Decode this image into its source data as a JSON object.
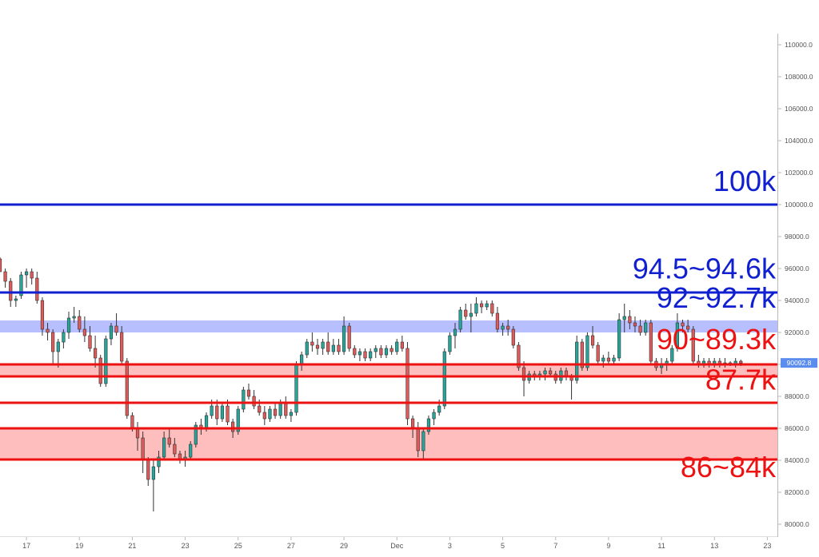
{
  "chart_data": {
    "type": "candlestick",
    "title": "",
    "ylim": [
      79600,
      111600
    ],
    "y_ticks": [
      "80000.0",
      "82000.0",
      "84000.0",
      "86000.0",
      "88000.0",
      "90000.0",
      "92000.0",
      "94000.0",
      "96000.0",
      "98000.0",
      "100000.0",
      "102000.0",
      "104000.0",
      "106000.0",
      "108000.0",
      "110000.0"
    ],
    "y_tick_values": [
      80000,
      82000,
      84000,
      86000,
      88000,
      90000,
      92000,
      94000,
      96000,
      98000,
      100000,
      102000,
      104000,
      106000,
      108000,
      110000
    ],
    "x_ticks": [
      "17",
      "19",
      "21",
      "23",
      "25",
      "27",
      "29",
      "Dec",
      "3",
      "5",
      "7",
      "9",
      "11",
      "13",
      "23"
    ],
    "x_tick_days": [
      17,
      19,
      21,
      23,
      25,
      27,
      29,
      31,
      33,
      35,
      37,
      39,
      41,
      43,
      45
    ],
    "x_day_range": [
      16.0,
      45.2
    ],
    "last_price": {
      "label": "90092.8",
      "value": 90092.8,
      "color": "#5b8def"
    },
    "colors": {
      "up": "#26a69a",
      "down": "#e05a5a",
      "blue_level": "#1020d0",
      "red_level": "#ee1111",
      "blue_zone_fill": "#aab4ff",
      "red_zone_fill": "#ffb3b3"
    },
    "levels": [
      {
        "id": "level-100k",
        "value": 100000,
        "color": "blue"
      },
      {
        "id": "level-94-5k",
        "value": 94500,
        "color": "blue"
      },
      {
        "id": "level-90k",
        "value": 90000,
        "color": "red"
      },
      {
        "id": "level-89-3k",
        "value": 89250,
        "color": "red"
      },
      {
        "id": "level-87-7k",
        "value": 87600,
        "color": "red"
      },
      {
        "id": "level-86k",
        "value": 86000,
        "color": "red"
      },
      {
        "id": "level-84k",
        "value": 84050,
        "color": "red"
      }
    ],
    "zones": [
      {
        "id": "zone-92k",
        "from": 92000,
        "to": 92750,
        "color": "blue"
      },
      {
        "id": "zone-90k",
        "from": 89250,
        "to": 90000,
        "color": "red"
      },
      {
        "id": "zone-84-86k",
        "from": 84050,
        "to": 86000,
        "color": "red"
      }
    ],
    "annotations": [
      {
        "id": "label-100k",
        "text": "100k",
        "y": 100850,
        "color": "blue"
      },
      {
        "id": "label-94-5k",
        "text": "94.5~94.6k",
        "y": 95380,
        "color": "blue"
      },
      {
        "id": "label-92k",
        "text": "92~92.7k",
        "y": 93560,
        "color": "blue"
      },
      {
        "id": "label-90k",
        "text": "90~89.3k",
        "y": 90950,
        "color": "red"
      },
      {
        "id": "label-87-7k",
        "text": "87.7k",
        "y": 88430,
        "color": "red"
      },
      {
        "id": "label-84k",
        "text": "86~84k",
        "y": 82950,
        "color": "red"
      }
    ],
    "candles": [
      [
        16.0,
        96600,
        96700,
        95800,
        95800
      ],
      [
        16.2,
        95800,
        96000,
        94800,
        95200
      ],
      [
        16.4,
        95200,
        95400,
        93600,
        94000
      ],
      [
        16.6,
        94000,
        94300,
        93600,
        94100
      ],
      [
        16.8,
        94300,
        95800,
        94100,
        95600
      ],
      [
        17.0,
        95600,
        96000,
        94800,
        95800
      ],
      [
        17.2,
        95800,
        96000,
        95000,
        95400
      ],
      [
        17.4,
        95400,
        95800,
        93800,
        94000
      ],
      [
        17.6,
        94000,
        94200,
        91800,
        92200
      ],
      [
        17.8,
        92200,
        92600,
        91500,
        92000
      ],
      [
        18.0,
        92000,
        92200,
        90000,
        90800
      ],
      [
        18.2,
        90800,
        91600,
        89800,
        91400
      ],
      [
        18.4,
        91400,
        92200,
        91000,
        92000
      ],
      [
        18.6,
        92000,
        93300,
        91600,
        92900
      ],
      [
        18.8,
        92900,
        93600,
        92600,
        93000
      ],
      [
        19.0,
        93000,
        93400,
        92000,
        92200
      ],
      [
        19.2,
        92200,
        93000,
        91400,
        91800
      ],
      [
        19.4,
        91800,
        92400,
        90800,
        91000
      ],
      [
        19.6,
        91000,
        91800,
        89800,
        90400
      ],
      [
        19.8,
        90400,
        90600,
        88600,
        88800
      ],
      [
        20.0,
        88800,
        91800,
        88600,
        91600
      ],
      [
        20.2,
        91600,
        92600,
        91200,
        92400
      ],
      [
        20.4,
        92400,
        93200,
        91800,
        92000
      ],
      [
        20.6,
        92000,
        92400,
        90000,
        90200
      ],
      [
        20.8,
        90200,
        90400,
        86600,
        86800
      ],
      [
        21.0,
        86800,
        87000,
        85800,
        86000
      ],
      [
        21.2,
        86000,
        86400,
        84600,
        85400
      ],
      [
        21.4,
        85400,
        85800,
        83200,
        84000
      ],
      [
        21.6,
        84000,
        84200,
        82400,
        82800
      ],
      [
        21.8,
        82800,
        84000,
        80800,
        83600
      ],
      [
        22.0,
        83600,
        84600,
        83200,
        84200
      ],
      [
        22.2,
        84200,
        85800,
        84000,
        85400
      ],
      [
        22.4,
        85400,
        86000,
        84800,
        85000
      ],
      [
        22.6,
        85000,
        85400,
        84200,
        84400
      ],
      [
        22.8,
        84400,
        84600,
        83800,
        84000
      ],
      [
        23.0,
        84000,
        84600,
        83600,
        84200
      ],
      [
        23.2,
        84200,
        85200,
        84000,
        85000
      ],
      [
        23.4,
        85000,
        86400,
        84800,
        86200
      ],
      [
        23.6,
        86200,
        86600,
        85600,
        86000
      ],
      [
        23.8,
        86000,
        87000,
        85800,
        86800
      ],
      [
        24.0,
        86800,
        87800,
        86600,
        87400
      ],
      [
        24.2,
        87400,
        87800,
        86200,
        86600
      ],
      [
        24.4,
        86600,
        87600,
        86400,
        87400
      ],
      [
        24.6,
        87400,
        87800,
        86200,
        86400
      ],
      [
        24.8,
        86400,
        86600,
        85400,
        85800
      ],
      [
        25.0,
        85800,
        87400,
        85600,
        87200
      ],
      [
        25.2,
        87200,
        88600,
        87000,
        88400
      ],
      [
        25.4,
        88400,
        88800,
        87800,
        88000
      ],
      [
        25.6,
        88000,
        88400,
        87200,
        87400
      ],
      [
        25.8,
        87400,
        87800,
        86800,
        87000
      ],
      [
        26.0,
        87000,
        87400,
        86200,
        86600
      ],
      [
        26.2,
        86600,
        87400,
        86400,
        87200
      ],
      [
        26.4,
        87200,
        87600,
        86600,
        86800
      ],
      [
        26.6,
        86800,
        87800,
        86600,
        87600
      ],
      [
        26.8,
        87600,
        88000,
        86600,
        86800
      ],
      [
        27.0,
        86800,
        87200,
        86400,
        87000
      ],
      [
        27.2,
        87000,
        90200,
        86800,
        90000
      ],
      [
        27.4,
        90000,
        90800,
        89600,
        90600
      ],
      [
        27.6,
        90600,
        91600,
        90400,
        91400
      ],
      [
        27.8,
        91400,
        92000,
        90800,
        91200
      ],
      [
        28.0,
        91200,
        91600,
        90600,
        91000
      ],
      [
        28.2,
        91000,
        91600,
        90600,
        91400
      ],
      [
        28.4,
        91400,
        92000,
        90600,
        90800
      ],
      [
        28.6,
        90800,
        91600,
        90600,
        91200
      ],
      [
        28.8,
        91200,
        91600,
        90600,
        90800
      ],
      [
        29.0,
        90800,
        93000,
        90600,
        92400
      ],
      [
        29.2,
        92400,
        92600,
        90800,
        91000
      ],
      [
        29.4,
        91000,
        91200,
        90400,
        90600
      ],
      [
        29.6,
        90600,
        91000,
        90200,
        90800
      ],
      [
        29.8,
        90800,
        91000,
        90200,
        90400
      ],
      [
        30.0,
        90400,
        91000,
        90200,
        90800
      ],
      [
        30.2,
        90800,
        91200,
        90400,
        91000
      ],
      [
        30.4,
        91000,
        91200,
        90400,
        90600
      ],
      [
        30.6,
        90600,
        91200,
        90400,
        91000
      ],
      [
        30.8,
        91000,
        91200,
        90600,
        90800
      ],
      [
        31.0,
        90800,
        91600,
        90600,
        91400
      ],
      [
        31.2,
        91400,
        91800,
        90800,
        91000
      ],
      [
        31.4,
        91000,
        91400,
        86200,
        86600
      ],
      [
        31.6,
        86600,
        86800,
        85400,
        86000
      ],
      [
        31.8,
        86000,
        86400,
        84200,
        84600
      ],
      [
        32.0,
        84600,
        86000,
        84000,
        85800
      ],
      [
        32.2,
        85800,
        86800,
        85600,
        86600
      ],
      [
        32.4,
        86600,
        87200,
        86200,
        87000
      ],
      [
        32.6,
        87000,
        87800,
        86800,
        87400
      ],
      [
        32.8,
        87400,
        91000,
        87200,
        90800
      ],
      [
        33.0,
        90800,
        92000,
        90600,
        91800
      ],
      [
        33.2,
        91800,
        92600,
        91000,
        92200
      ],
      [
        33.4,
        92200,
        93600,
        92000,
        93400
      ],
      [
        33.6,
        93400,
        93800,
        92800,
        93000
      ],
      [
        33.8,
        93000,
        93800,
        92000,
        93200
      ],
      [
        34.0,
        93200,
        94200,
        93000,
        93800
      ],
      [
        34.2,
        93800,
        94000,
        93200,
        93600
      ],
      [
        34.4,
        93600,
        94000,
        93400,
        93800
      ],
      [
        34.6,
        93800,
        94000,
        93000,
        93200
      ],
      [
        34.8,
        93200,
        93600,
        92000,
        92200
      ],
      [
        35.0,
        92200,
        92600,
        91800,
        92400
      ],
      [
        35.2,
        92400,
        92800,
        91800,
        92200
      ],
      [
        35.4,
        92200,
        92400,
        91000,
        91200
      ],
      [
        35.6,
        91200,
        91400,
        89600,
        89800
      ],
      [
        35.8,
        89800,
        90200,
        88000,
        89000
      ],
      [
        36.0,
        89000,
        89600,
        88800,
        89400
      ],
      [
        36.2,
        89400,
        89600,
        89000,
        89200
      ],
      [
        36.4,
        89200,
        89600,
        89000,
        89400
      ],
      [
        36.6,
        89400,
        89800,
        89000,
        89600
      ],
      [
        36.8,
        89600,
        89800,
        89200,
        89400
      ],
      [
        37.0,
        89400,
        89600,
        88800,
        89000
      ],
      [
        37.2,
        89000,
        89800,
        88800,
        89600
      ],
      [
        37.4,
        89600,
        89800,
        89000,
        89200
      ],
      [
        37.6,
        89200,
        89400,
        87800,
        89000
      ],
      [
        37.8,
        89000,
        91800,
        88800,
        91400
      ],
      [
        38.0,
        91400,
        91600,
        89600,
        89800
      ],
      [
        38.2,
        89800,
        92000,
        89600,
        91800
      ],
      [
        38.4,
        91800,
        92400,
        91000,
        91200
      ],
      [
        38.6,
        91200,
        91400,
        90000,
        90200
      ],
      [
        38.8,
        90200,
        90600,
        89800,
        90400
      ],
      [
        39.0,
        90400,
        90800,
        90000,
        90200
      ],
      [
        39.2,
        90200,
        90600,
        90000,
        90400
      ],
      [
        39.4,
        90400,
        93200,
        90200,
        92800
      ],
      [
        39.6,
        92800,
        93800,
        92000,
        93000
      ],
      [
        39.8,
        93000,
        93400,
        92200,
        92600
      ],
      [
        40.0,
        92600,
        93000,
        92000,
        92400
      ],
      [
        40.2,
        92400,
        92800,
        91800,
        92000
      ],
      [
        40.4,
        92000,
        92800,
        91800,
        92600
      ],
      [
        40.6,
        92600,
        92800,
        90000,
        90200
      ],
      [
        40.8,
        90200,
        90400,
        89600,
        89800
      ],
      [
        41.0,
        89800,
        90400,
        89400,
        90000
      ],
      [
        41.2,
        90000,
        90400,
        89600,
        90200
      ],
      [
        41.4,
        90200,
        91200,
        90000,
        91000
      ],
      [
        41.6,
        91000,
        93200,
        90800,
        92600
      ],
      [
        41.8,
        92600,
        92800,
        92000,
        92400
      ],
      [
        42.0,
        92400,
        92800,
        92000,
        92200
      ],
      [
        42.2,
        92200,
        92400,
        90000,
        90200
      ],
      [
        42.4,
        90200,
        90600,
        89800,
        90000
      ],
      [
        42.6,
        90000,
        90400,
        89800,
        90200
      ],
      [
        42.8,
        90200,
        90400,
        89800,
        90000
      ],
      [
        43.0,
        90000,
        90400,
        89800,
        90200
      ],
      [
        43.2,
        90200,
        90400,
        89800,
        90000
      ],
      [
        43.4,
        90000,
        90400,
        89800,
        90100
      ],
      [
        43.6,
        90100,
        90200,
        89900,
        90000
      ],
      [
        43.8,
        90000,
        90400,
        89800,
        90200
      ],
      [
        44.0,
        90200,
        90300,
        89900,
        90090
      ]
    ]
  }
}
